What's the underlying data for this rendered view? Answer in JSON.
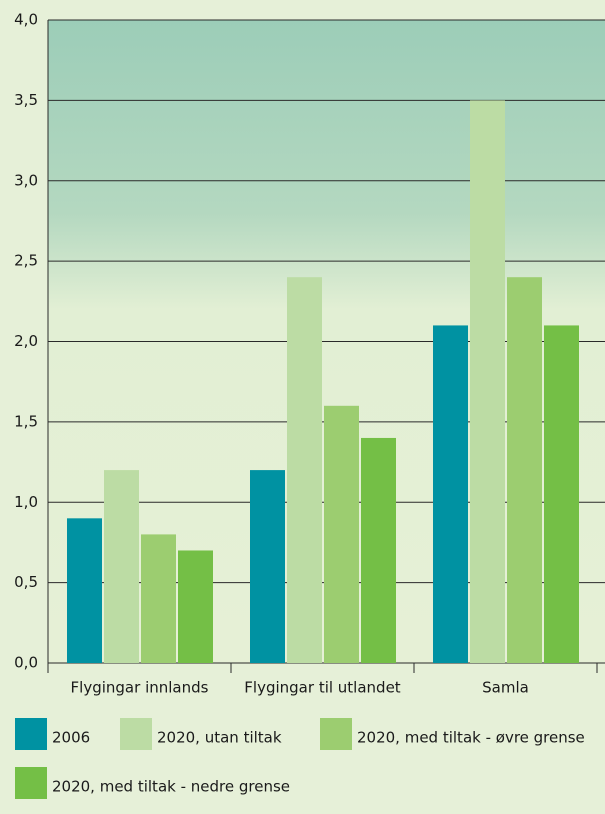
{
  "chart_data": {
    "type": "bar",
    "categories": [
      "Flygingar innlands",
      "Flygingar til utlandet",
      "Samla"
    ],
    "series": [
      {
        "name": "2006",
        "color": "#0092a2",
        "values": [
          0.9,
          1.2,
          2.1
        ]
      },
      {
        "name": "2020, utan tiltak",
        "color": "#bcdca4",
        "values": [
          1.2,
          2.4,
          3.5
        ]
      },
      {
        "name": "2020, med tiltak - øvre grense",
        "color": "#9ccd70",
        "values": [
          0.8,
          1.6,
          2.4
        ]
      },
      {
        "name": "2020, med tiltak - nedre grense",
        "color": "#74bf46",
        "values": [
          0.7,
          1.4,
          2.1
        ]
      }
    ],
    "ylim": [
      0,
      4
    ],
    "yticks": [
      {
        "value": 0,
        "label": "0,0"
      },
      {
        "value": 0.5,
        "label": "0,5"
      },
      {
        "value": 1,
        "label": "1,0"
      },
      {
        "value": 1.5,
        "label": "1,5"
      },
      {
        "value": 2,
        "label": "2,0"
      },
      {
        "value": 2.5,
        "label": "2,5"
      },
      {
        "value": 3,
        "label": "3,0"
      },
      {
        "value": 3.5,
        "label": "3,5"
      },
      {
        "value": 4,
        "label": "4,0"
      }
    ],
    "grid": true
  }
}
